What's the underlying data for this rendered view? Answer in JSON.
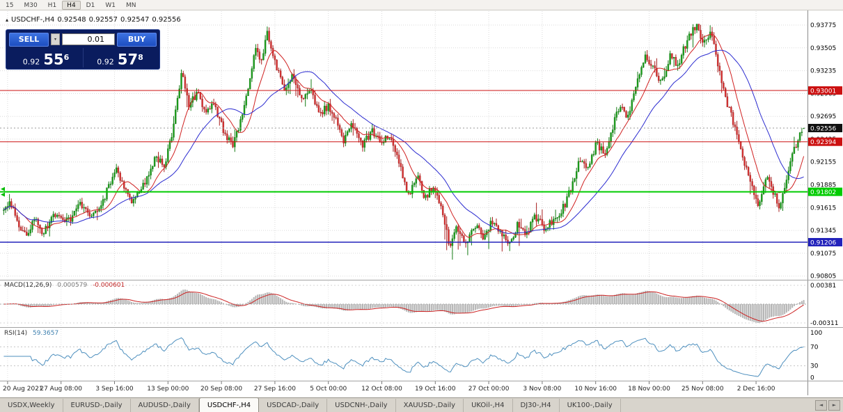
{
  "toolbar": {
    "timeframes": [
      "15",
      "M30",
      "H1",
      "H4",
      "D1",
      "W1",
      "MN"
    ],
    "active": "H4"
  },
  "chart_header": {
    "symbol": "USDCHF-,H4",
    "open": "0.92548",
    "high": "0.92557",
    "low": "0.92547",
    "close": "0.92556"
  },
  "trade_panel": {
    "sell_label": "SELL",
    "buy_label": "BUY",
    "lot_size": "0.01",
    "sell_price_small": "0.92",
    "sell_price_big": "55",
    "sell_price_sup": "6",
    "buy_price_small": "0.92",
    "buy_price_big": "57",
    "buy_price_sup": "8"
  },
  "icons": {
    "chart": "▴",
    "dropdown": "▾",
    "prev": "◄",
    "next": "►"
  },
  "chart_data": {
    "type": "candlestick",
    "symbol": "USDCHF-,H4",
    "bars": 420,
    "x_labels": [
      "20 Aug 2021",
      "27 Aug 08:00",
      "3 Sep 16:00",
      "13 Sep 00:00",
      "20 Sep 08:00",
      "27 Sep 16:00",
      "5 Oct 00:00",
      "12 Oct 08:00",
      "19 Oct 16:00",
      "27 Oct 00:00",
      "3 Nov 08:00",
      "10 Nov 16:00",
      "18 Nov 00:00",
      "25 Nov 08:00",
      "2 Dec 16:00"
    ],
    "y_ticks": [
      0.93775,
      0.93505,
      0.93235,
      0.92965,
      0.92695,
      0.92425,
      0.92155,
      0.91885,
      0.91615,
      0.91345,
      0.91075,
      0.90805
    ],
    "y_range": [
      0.9078,
      0.9394
    ],
    "levels": [
      {
        "price": 0.93001,
        "label": "0.93001",
        "color": "#cc1111",
        "width": 1,
        "type": "resistance"
      },
      {
        "price": 0.92394,
        "label": "0.92394",
        "color": "#cc1111",
        "width": 1,
        "type": "resistance"
      },
      {
        "price": 0.91802,
        "label": "0.91802",
        "color": "#00cc00",
        "width": 2,
        "type": "support"
      },
      {
        "price": 0.91206,
        "label": "0.91206",
        "color": "#2222bb",
        "width": 1.5,
        "type": "support"
      }
    ],
    "current_price": {
      "value": 0.92556,
      "label": "0.92556"
    },
    "last_ohlc": {
      "open": 0.92548,
      "high": 0.92557,
      "low": 0.92547,
      "close": 0.92556
    },
    "price_path": [
      [
        0.0,
        0.9158
      ],
      [
        0.008,
        0.917
      ],
      [
        0.018,
        0.9142
      ],
      [
        0.028,
        0.9126
      ],
      [
        0.038,
        0.915
      ],
      [
        0.048,
        0.9128
      ],
      [
        0.058,
        0.9148
      ],
      [
        0.07,
        0.9152
      ],
      [
        0.082,
        0.9146
      ],
      [
        0.095,
        0.9165
      ],
      [
        0.11,
        0.9152
      ],
      [
        0.125,
        0.9172
      ],
      [
        0.14,
        0.9206
      ],
      [
        0.15,
        0.9185
      ],
      [
        0.162,
        0.9168
      ],
      [
        0.175,
        0.9188
      ],
      [
        0.19,
        0.9222
      ],
      [
        0.202,
        0.9212
      ],
      [
        0.212,
        0.9258
      ],
      [
        0.222,
        0.9322
      ],
      [
        0.232,
        0.9282
      ],
      [
        0.242,
        0.9298
      ],
      [
        0.252,
        0.9272
      ],
      [
        0.262,
        0.9288
      ],
      [
        0.274,
        0.9255
      ],
      [
        0.286,
        0.9232
      ],
      [
        0.296,
        0.9262
      ],
      [
        0.306,
        0.9305
      ],
      [
        0.314,
        0.9352
      ],
      [
        0.321,
        0.9332
      ],
      [
        0.329,
        0.9368
      ],
      [
        0.34,
        0.9332
      ],
      [
        0.35,
        0.9302
      ],
      [
        0.36,
        0.9318
      ],
      [
        0.372,
        0.9288
      ],
      [
        0.383,
        0.9303
      ],
      [
        0.395,
        0.9272
      ],
      [
        0.406,
        0.9282
      ],
      [
        0.415,
        0.9268
      ],
      [
        0.425,
        0.924
      ],
      [
        0.436,
        0.926
      ],
      [
        0.448,
        0.9234
      ],
      [
        0.46,
        0.9252
      ],
      [
        0.472,
        0.924
      ],
      [
        0.483,
        0.9244
      ],
      [
        0.495,
        0.921
      ],
      [
        0.506,
        0.9174
      ],
      [
        0.516,
        0.92
      ],
      [
        0.527,
        0.9172
      ],
      [
        0.538,
        0.9188
      ],
      [
        0.549,
        0.9155
      ],
      [
        0.558,
        0.9112
      ],
      [
        0.567,
        0.914
      ],
      [
        0.577,
        0.9118
      ],
      [
        0.588,
        0.9142
      ],
      [
        0.599,
        0.9126
      ],
      [
        0.61,
        0.9146
      ],
      [
        0.62,
        0.9135
      ],
      [
        0.631,
        0.9115
      ],
      [
        0.642,
        0.914
      ],
      [
        0.653,
        0.913
      ],
      [
        0.664,
        0.915
      ],
      [
        0.676,
        0.9138
      ],
      [
        0.688,
        0.9148
      ],
      [
        0.7,
        0.9162
      ],
      [
        0.71,
        0.9188
      ],
      [
        0.72,
        0.922
      ],
      [
        0.73,
        0.9205
      ],
      [
        0.741,
        0.9238
      ],
      [
        0.751,
        0.9226
      ],
      [
        0.76,
        0.9252
      ],
      [
        0.77,
        0.9284
      ],
      [
        0.78,
        0.9268
      ],
      [
        0.791,
        0.9312
      ],
      [
        0.802,
        0.9342
      ],
      [
        0.812,
        0.9325
      ],
      [
        0.822,
        0.931
      ],
      [
        0.833,
        0.934
      ],
      [
        0.843,
        0.933
      ],
      [
        0.855,
        0.9362
      ],
      [
        0.866,
        0.9376
      ],
      [
        0.876,
        0.9355
      ],
      [
        0.884,
        0.937
      ],
      [
        0.893,
        0.933
      ],
      [
        0.903,
        0.9288
      ],
      [
        0.913,
        0.926
      ],
      [
        0.923,
        0.9224
      ],
      [
        0.933,
        0.9192
      ],
      [
        0.943,
        0.916
      ],
      [
        0.953,
        0.9196
      ],
      [
        0.962,
        0.918
      ],
      [
        0.97,
        0.9163
      ],
      [
        0.979,
        0.92
      ],
      [
        0.988,
        0.9232
      ],
      [
        1.0,
        0.92556
      ]
    ],
    "moving_averages": [
      {
        "name": "ma-fast",
        "period": 12,
        "color": "#d02020"
      },
      {
        "name": "ma-slow",
        "period": 32,
        "color": "#2b2bd0"
      }
    ],
    "macd": {
      "label": "MACD(12,26,9)",
      "value_main": "0.000579",
      "value_signal": "-0.000601",
      "fast": 12,
      "slow": 26,
      "signal": 9,
      "axis_max": "0.00381",
      "axis_min": "-0.00311",
      "hist_color": "#b4b4b4",
      "signal_color": "#cc2222"
    },
    "rsi": {
      "label": "RSI(14)",
      "value": "59.3657",
      "period": 14,
      "levels": [
        100,
        70,
        30,
        0
      ],
      "color": "#4d8fbe"
    }
  },
  "tabs": {
    "items": [
      "USDX,Weekly",
      "EURUSD-,Daily",
      "AUDUSD-,Daily",
      "USDCHF-,H4",
      "USDCAD-,Daily",
      "USDCNH-,Daily",
      "XAUUSD-,Daily",
      "UKOil-,H4",
      "DJ30-,H4",
      "UK100-,Daily"
    ],
    "active": "USDCHF-,H4"
  }
}
